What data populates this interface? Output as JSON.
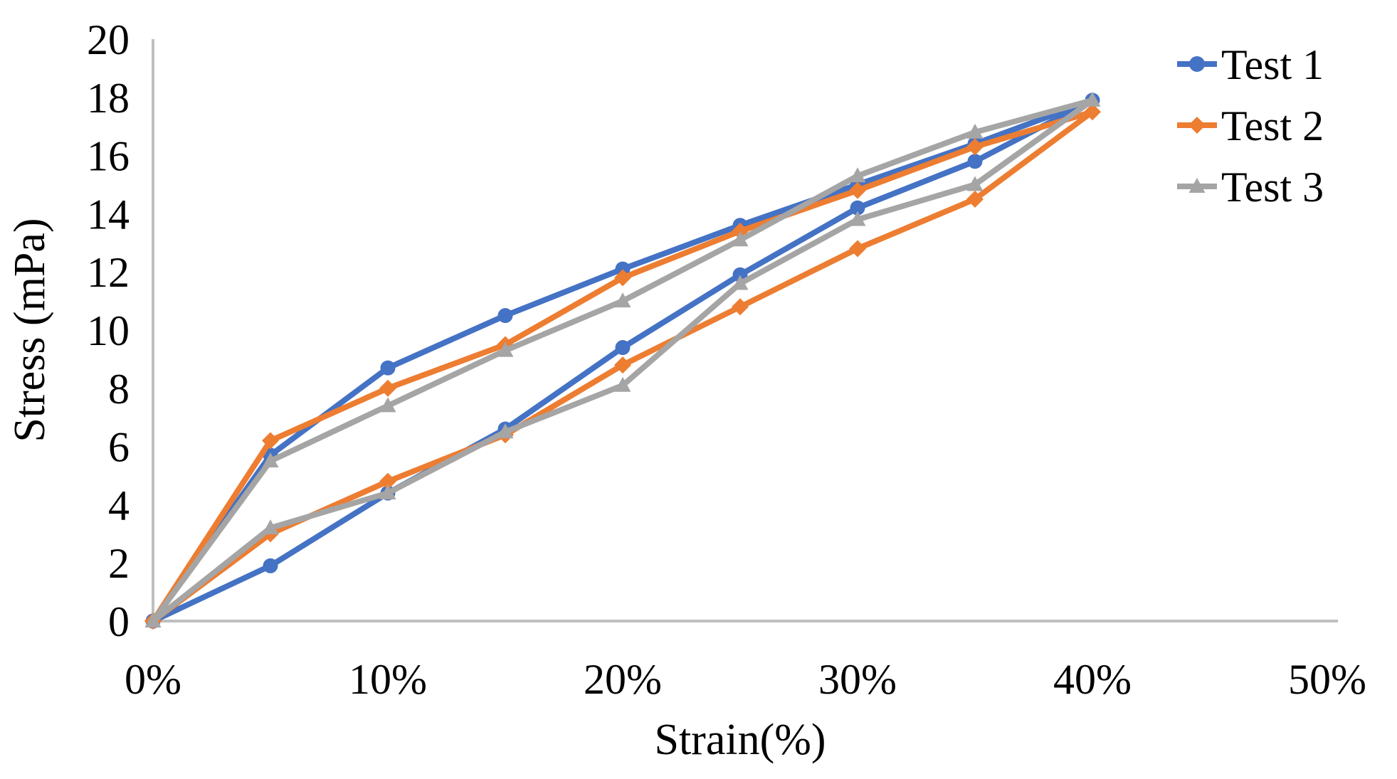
{
  "chart_data": {
    "type": "line",
    "title": "",
    "xlabel": "Strain(%)",
    "ylabel": "Stress (mPa)",
    "x_tick_labels": [
      "0%",
      "10%",
      "20%",
      "30%",
      "40%",
      "50%"
    ],
    "x_tick_values": [
      0,
      10,
      20,
      30,
      40,
      50
    ],
    "y_tick_values": [
      0,
      2,
      4,
      6,
      8,
      10,
      12,
      14,
      16,
      18,
      20
    ],
    "xlim": [
      0,
      50
    ],
    "ylim": [
      0,
      20
    ],
    "grid": false,
    "legend_position": "top-right",
    "axis_color": "#bfbfbf",
    "text_color": "#000000",
    "strain_pct": [
      0,
      5,
      10,
      15,
      20,
      25,
      30,
      35,
      40
    ],
    "series": [
      {
        "name": "Test 1",
        "color": "#4472C4",
        "marker": "circle",
        "loading": [
          0,
          5.7,
          8.7,
          10.5,
          12.1,
          13.6,
          15.0,
          16.4,
          17.9
        ],
        "unloading": [
          0,
          1.9,
          4.4,
          6.6,
          9.4,
          11.9,
          14.2,
          15.8,
          17.9
        ]
      },
      {
        "name": "Test 2",
        "color": "#ED7D31",
        "marker": "diamond",
        "loading": [
          0,
          6.2,
          8.0,
          9.5,
          11.8,
          13.4,
          14.8,
          16.3,
          17.5
        ],
        "unloading": [
          0,
          3.0,
          4.8,
          6.4,
          8.8,
          10.8,
          12.8,
          14.5,
          17.5
        ]
      },
      {
        "name": "Test 3",
        "color": "#A5A5A5",
        "marker": "triangle",
        "loading": [
          0,
          5.5,
          7.4,
          9.3,
          11.0,
          13.1,
          15.3,
          16.8,
          17.9
        ],
        "unloading": [
          0,
          3.2,
          4.4,
          6.5,
          8.1,
          11.6,
          13.8,
          15.0,
          17.9
        ]
      }
    ]
  }
}
